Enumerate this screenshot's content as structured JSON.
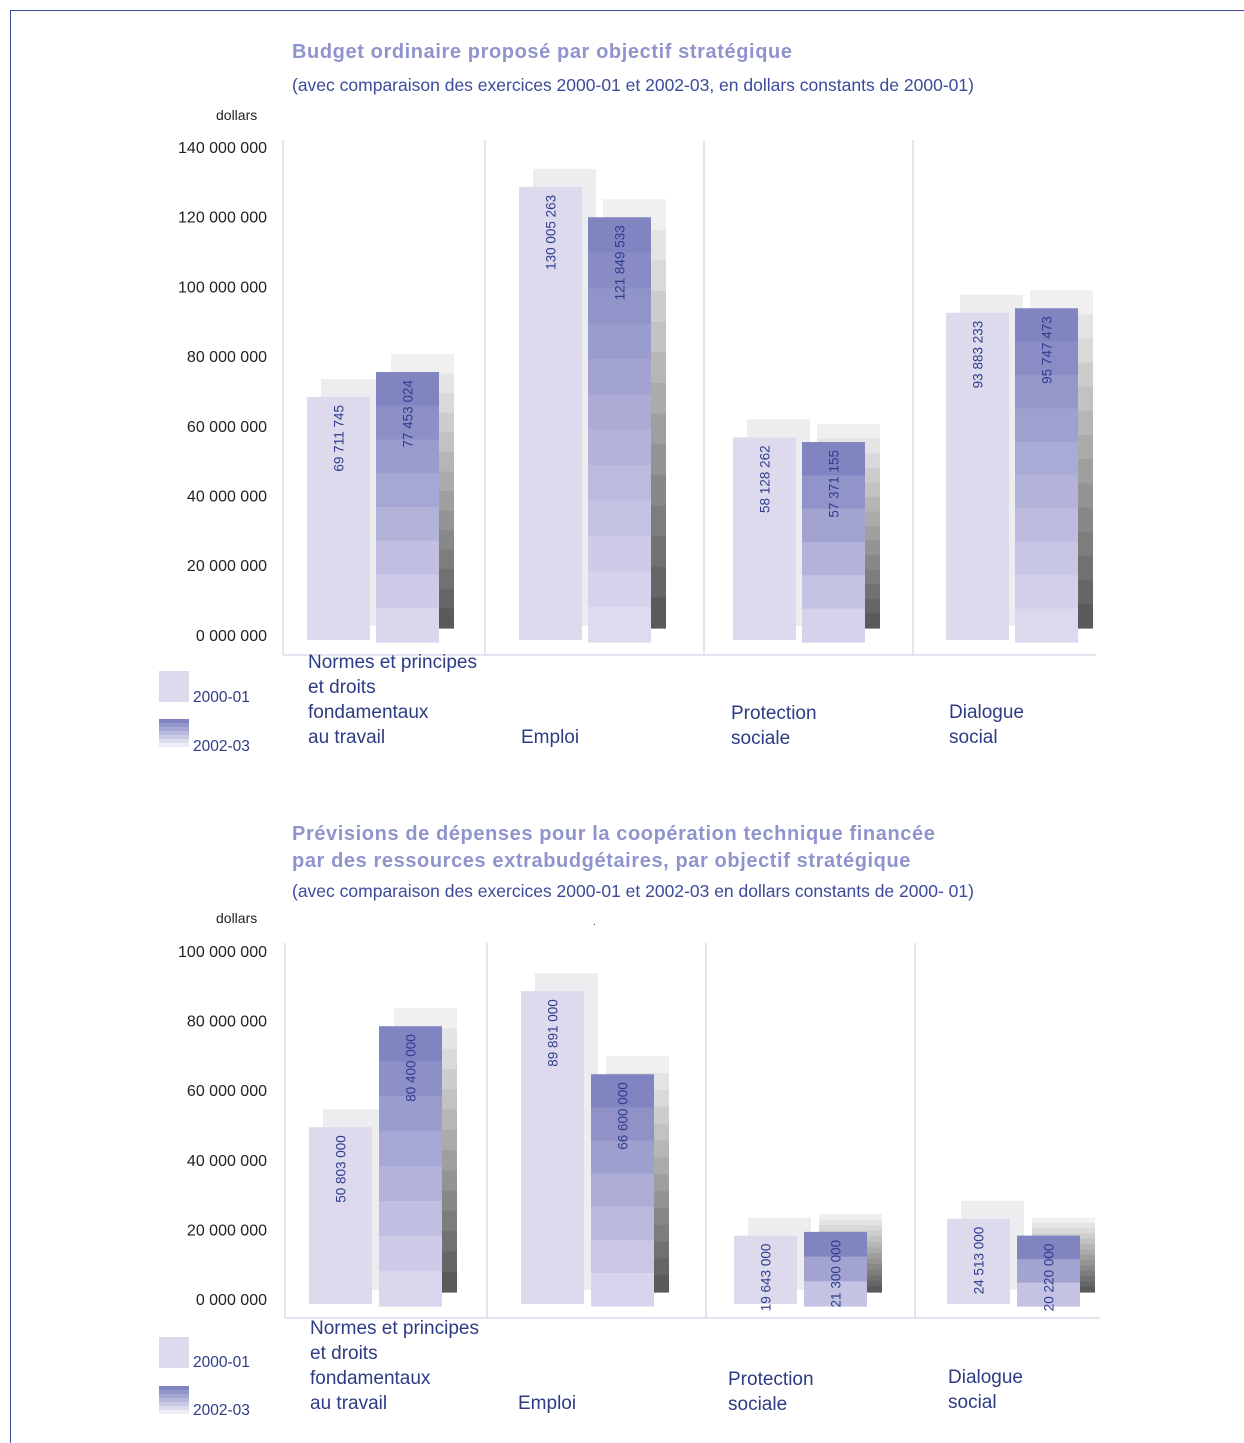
{
  "colors": {
    "title": "#8f95cc",
    "text": "#2d3b85",
    "bar_2000": "#dcdaec",
    "bar_2002_dark": "#8084c0",
    "bar_2002_light": "#e6e2f4",
    "shadow_dark": "#5a5a5a",
    "shadow_light": "#f0f0f0",
    "divider": "#c9cbe2"
  },
  "chart_data": [
    {
      "type": "bar",
      "title": "Budget ordinaire proposé par objectif stratégique",
      "subtitle": "(avec comparaison des exercices 2000-01 et 2002-03, en dollars constants de 2000-01)",
      "ylabel": "dollars",
      "ylim": [
        0,
        140000000
      ],
      "yticks": [
        "140 000 000",
        "120 000 000",
        "100 000 000",
        "80 000 000",
        "60 000 000",
        "40 000 000",
        "20 000 000",
        "0 000 000"
      ],
      "categories": [
        "Normes et principes et droits fondamentaux au travail",
        "Emploi",
        "Protection sociale",
        "Dialogue social"
      ],
      "category_lines": [
        [
          "Normes et principes",
          "et droits",
          "fondamentaux",
          "au travail"
        ],
        [
          "Emploi"
        ],
        [
          "Protection",
          "sociale"
        ],
        [
          "Dialogue",
          "social"
        ]
      ],
      "series": [
        {
          "name": "2000-01",
          "values": [
            69711745,
            130005263,
            58128262,
            93883233
          ],
          "labels": [
            "69 711 745",
            "130 005 263",
            "58 128 262",
            "93 883 233"
          ]
        },
        {
          "name": "2002-03",
          "values": [
            77453024,
            121849533,
            57371155,
            95747473
          ],
          "labels": [
            "77 453 024",
            "121 849 533",
            "57 371 155",
            "95 747 473"
          ]
        }
      ],
      "legend": [
        "2000-01",
        "2002-03"
      ],
      "legend_position": "bottom-left"
    },
    {
      "type": "bar",
      "title": "Prévisions de dépenses pour la coopération technique financée par des ressources extrabudgétaires, par objectif stratégique",
      "title_lines": [
        "Prévisions de dépenses pour la coopération technique financée",
        "par des ressources extrabudgétaires, par objectif stratégique"
      ],
      "subtitle": "(avec comparaison des exercices 2000-01 et 2002-03 en dollars constants de 2000- 01)",
      "ylabel": "dollars",
      "ylim": [
        0,
        100000000
      ],
      "yticks": [
        "100 000 000",
        "80 000 000",
        "60 000 000",
        "40 000 000",
        "20 000 000",
        "0 000 000"
      ],
      "categories": [
        "Normes et principes et droits fondamentaux au travail",
        "Emploi",
        "Protection sociale",
        "Dialogue social"
      ],
      "category_lines": [
        [
          "Normes et principes",
          "et droits",
          "fondamentaux",
          "au travail"
        ],
        [
          "Emploi"
        ],
        [
          "Protection",
          "sociale"
        ],
        [
          "Dialogue",
          "social"
        ]
      ],
      "series": [
        {
          "name": "2000-01",
          "values": [
            50803000,
            89891000,
            19643000,
            24513000
          ],
          "labels": [
            "50 803 000",
            "89 891 000",
            "19 643 000",
            "24 513 000"
          ]
        },
        {
          "name": "2002-03",
          "values": [
            80400000,
            66600000,
            21300000,
            20220000
          ],
          "labels": [
            "80 400 000",
            "66 600 000",
            "21 300 000",
            "20 220 000"
          ]
        }
      ],
      "legend": [
        "2000-01",
        "2002-03"
      ],
      "legend_position": "bottom-left"
    }
  ],
  "stray_mark": "."
}
